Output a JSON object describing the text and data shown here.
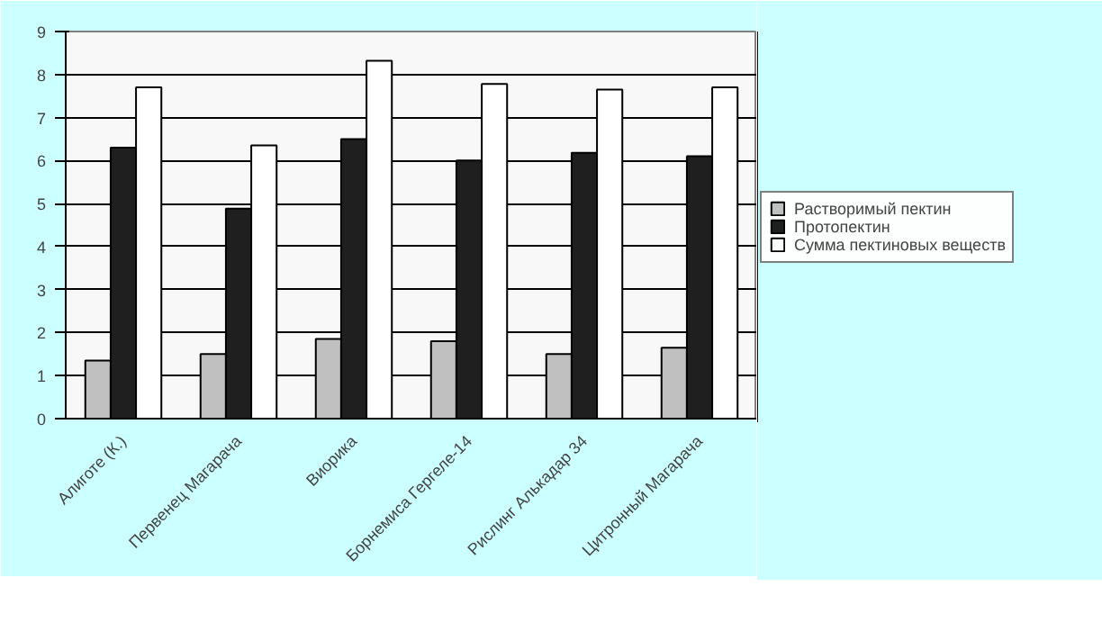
{
  "chart_data": {
    "type": "bar",
    "categories": [
      "Алиготе (К.)",
      "Первенец Магарача",
      "Виорика",
      "Борнемиса Гергеле-14",
      "Рислинг Алькадар 34",
      "Цитронный Магарача"
    ],
    "series": [
      {
        "name": "Растворимый пектин",
        "color": "#c0c0c0",
        "values": [
          1.35,
          1.5,
          1.85,
          1.8,
          1.5,
          1.65
        ]
      },
      {
        "name": "Протопектин",
        "color": "#1f1f1f",
        "values": [
          6.3,
          4.88,
          6.5,
          6.0,
          6.18,
          6.1
        ]
      },
      {
        "name": "Сумма пектиновых веществ",
        "color": "#ffffff",
        "values": [
          7.7,
          6.35,
          8.32,
          7.78,
          7.65,
          7.7
        ]
      }
    ],
    "ylim": [
      0,
      9
    ],
    "yticks": [
      0,
      1,
      2,
      3,
      4,
      5,
      6,
      7,
      8,
      9
    ],
    "grid": "y",
    "legend": "right"
  }
}
